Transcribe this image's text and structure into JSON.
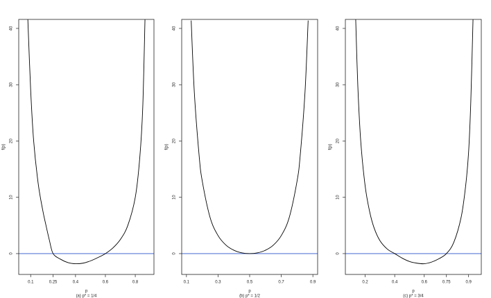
{
  "chart_data": [
    {
      "type": "line",
      "caption": "(a) p* = 1/4",
      "xlabel": "p",
      "ylabel": "f(p)",
      "x": [
        0.081,
        0.1,
        0.12,
        0.15,
        0.18,
        0.2,
        0.225,
        0.25,
        0.3,
        0.35,
        0.4,
        0.45,
        0.5,
        0.55,
        0.6,
        0.65,
        0.7,
        0.75,
        0.8,
        0.83,
        0.85,
        0.865
      ],
      "values": [
        41.6,
        29,
        20,
        12.5,
        7.8,
        5.3,
        2.4,
        0,
        -1.0,
        -1.6,
        -1.8,
        -1.7,
        -1.3,
        -0.7,
        0,
        1.0,
        2.5,
        5.0,
        10,
        17,
        26,
        41.6
      ],
      "color": "#000000",
      "hline": {
        "value": 0,
        "color": "#5b78d6"
      },
      "xlim": [
        0.02,
        0.925
      ],
      "xticks": [
        0.1,
        0.25,
        0.4,
        0.6,
        0.8
      ],
      "ylim": [
        -3.7,
        41.6
      ],
      "yticks": [
        0,
        10,
        20,
        30,
        40
      ]
    },
    {
      "type": "line",
      "caption": "(b) p* = 1/2",
      "xlabel": "p",
      "ylabel": "f(p)",
      "x": [
        0.13,
        0.15,
        0.18,
        0.2,
        0.25,
        0.3,
        0.35,
        0.4,
        0.45,
        0.5,
        0.55,
        0.6,
        0.65,
        0.7,
        0.75,
        0.8,
        0.82,
        0.85,
        0.87
      ],
      "values": [
        41.4,
        28.6,
        17.5,
        12.9,
        6.38,
        3.2,
        1.51,
        0.6,
        0.14,
        0,
        0.14,
        0.6,
        1.51,
        3.2,
        6.38,
        12.9,
        17.5,
        28.6,
        41.4
      ],
      "color": "#000000",
      "hline": {
        "value": 0,
        "color": "#5b78d6"
      },
      "xlim": [
        0.07,
        0.93
      ],
      "xticks": [
        0.1,
        0.3,
        0.5,
        0.7,
        0.9
      ],
      "ylim": [
        -3.7,
        41.6
      ],
      "yticks": [
        0,
        10,
        20,
        30,
        40
      ]
    },
    {
      "type": "line",
      "caption": "(c) p* = 3/4",
      "xlabel": "p",
      "ylabel": "f(p)",
      "x": [
        0.136,
        0.15,
        0.17,
        0.2,
        0.23,
        0.26,
        0.3,
        0.35,
        0.4,
        0.45,
        0.5,
        0.55,
        0.6,
        0.65,
        0.7,
        0.75,
        0.8,
        0.85,
        0.88,
        0.9,
        0.915,
        0.93
      ],
      "values": [
        41.6,
        30,
        20,
        12,
        7.5,
        4.6,
        2.3,
        0.8,
        0,
        -0.8,
        -1.4,
        -1.7,
        -1.8,
        -1.5,
        -0.9,
        0,
        2.0,
        6.5,
        12,
        18,
        27,
        41.6
      ],
      "color": "#000000",
      "hline": {
        "value": 0,
        "color": "#5b78d6"
      },
      "xlim": [
        0.066,
        0.986
      ],
      "xticks": [
        0.2,
        0.4,
        0.6,
        0.75,
        0.9
      ],
      "ylim": [
        -3.7,
        41.6
      ],
      "yticks": [
        0,
        10,
        20,
        30,
        40
      ]
    }
  ]
}
